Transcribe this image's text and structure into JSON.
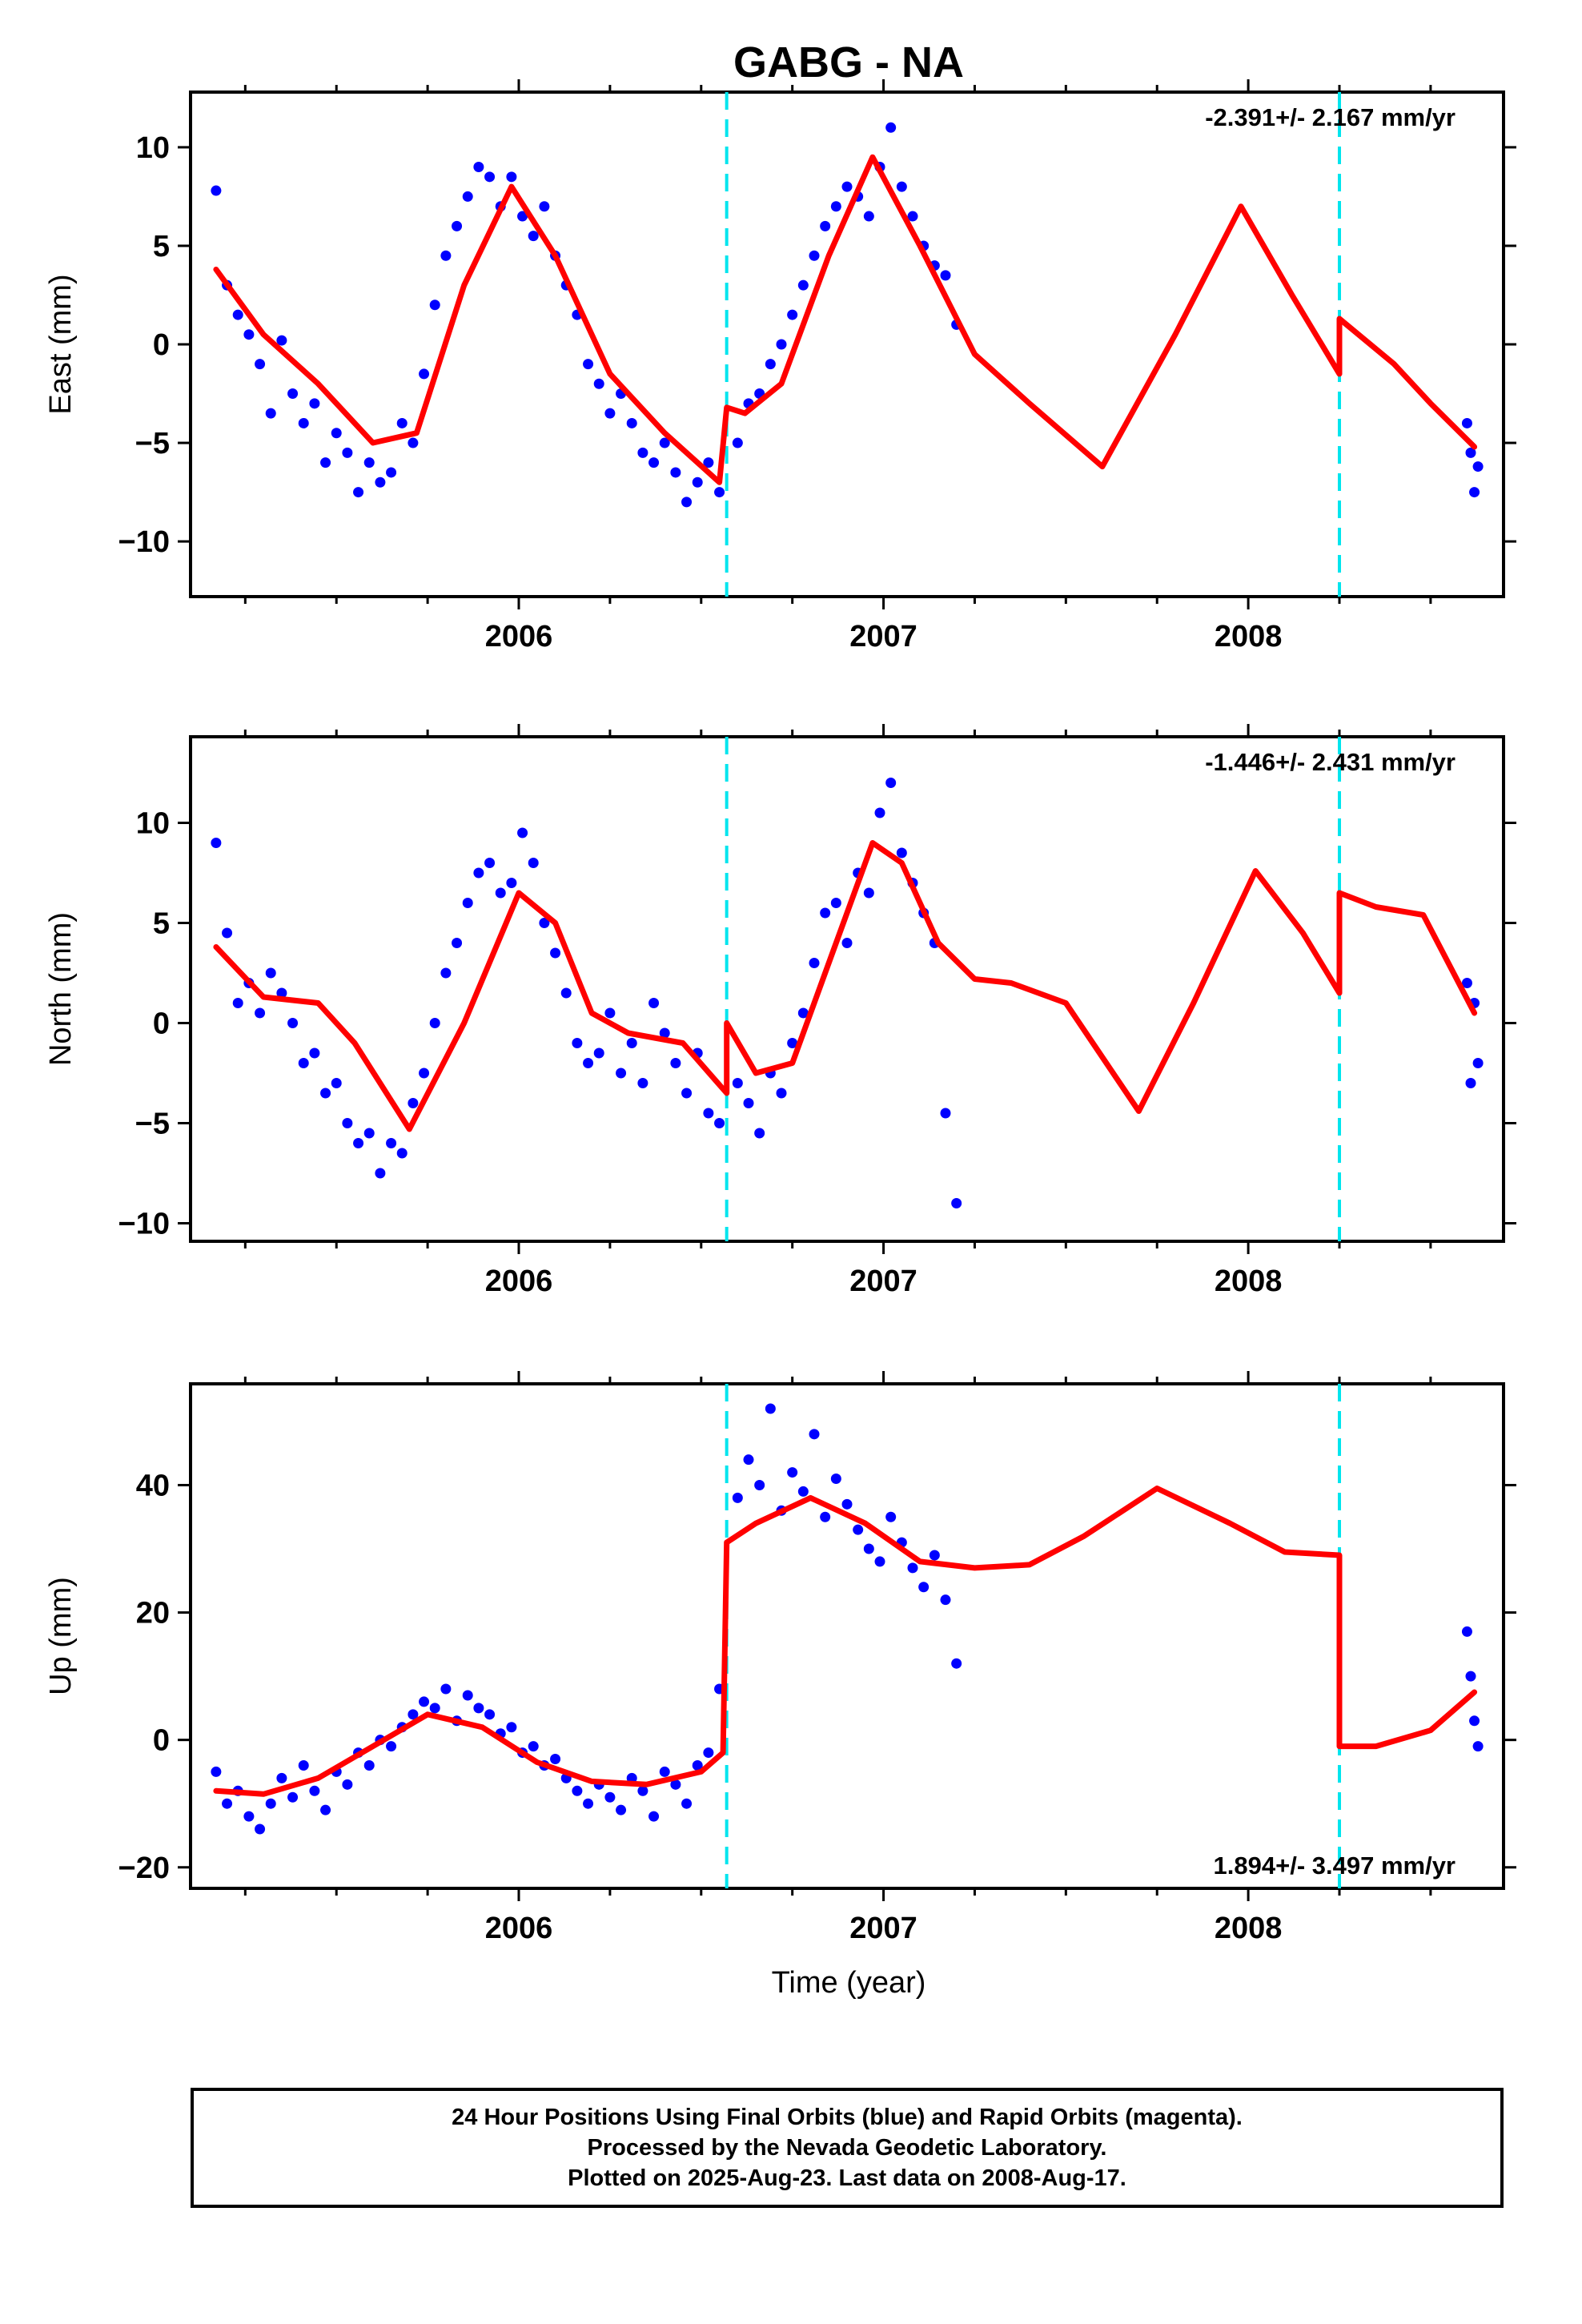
{
  "title": "GABG - NA",
  "colors": {
    "data_points": "#0000ff",
    "model_line": "#ff0000",
    "offset_lines": "#00e5ee",
    "frame": "#000000"
  },
  "xlabel": "Time (year)",
  "footer": {
    "line1": "24 Hour Positions Using Final Orbits (blue) and Rapid Orbits (magenta).",
    "line2": "Processed by the Nevada Geodetic Laboratory.",
    "line3": "Plotted on 2025-Aug-23. Last data on 2008-Aug-17."
  },
  "chart_data": [
    {
      "type": "scatter",
      "name_panel": "east",
      "ylabel": "East (mm)",
      "rate_text": "-2.391+/- 2.167 mm/yr",
      "rate_position": "top-right",
      "xlim": [
        2005.1,
        2008.7
      ],
      "ylim": [
        -12.8,
        12.8
      ],
      "x_ticks": [
        2006,
        2007,
        2008
      ],
      "y_ticks": [
        -10,
        -5,
        0,
        5,
        10
      ],
      "y_tick_labels": [
        "−10",
        "−5",
        "0",
        "5",
        "10"
      ],
      "offset_epochs": [
        2006.57,
        2008.25
      ],
      "model_line": {
        "x": [
          2005.17,
          2005.3,
          2005.45,
          2005.6,
          2005.72,
          2005.85,
          2005.98,
          2006.1,
          2006.25,
          2006.4,
          2006.55,
          2006.57,
          2006.62,
          2006.72,
          2006.85,
          2006.97,
          2007.1,
          2007.25,
          2007.4,
          2007.6,
          2007.8,
          2007.98,
          2008.12,
          2008.25,
          2008.25,
          2008.4,
          2008.5,
          2008.62
        ],
        "y": [
          3.8,
          0.5,
          -2.0,
          -5.0,
          -4.5,
          3.0,
          8.0,
          4.5,
          -1.5,
          -4.5,
          -7.0,
          -3.2,
          -3.5,
          -2.0,
          4.5,
          9.5,
          5.0,
          -0.5,
          -3.0,
          -6.2,
          0.5,
          7.0,
          2.5,
          -1.5,
          1.3,
          -1.0,
          -3.0,
          -5.2
        ]
      },
      "points": {
        "x": [
          2005.17,
          2005.2,
          2005.23,
          2005.26,
          2005.29,
          2005.32,
          2005.35,
          2005.38,
          2005.41,
          2005.44,
          2005.47,
          2005.5,
          2005.53,
          2005.56,
          2005.59,
          2005.62,
          2005.65,
          2005.68,
          2005.71,
          2005.74,
          2005.77,
          2005.8,
          2005.83,
          2005.86,
          2005.89,
          2005.92,
          2005.95,
          2005.98,
          2006.01,
          2006.04,
          2006.07,
          2006.1,
          2006.13,
          2006.16,
          2006.19,
          2006.22,
          2006.25,
          2006.28,
          2006.31,
          2006.34,
          2006.37,
          2006.4,
          2006.43,
          2006.46,
          2006.49,
          2006.52,
          2006.55,
          2006.6,
          2006.63,
          2006.66,
          2006.69,
          2006.72,
          2006.75,
          2006.78,
          2006.81,
          2006.84,
          2006.87,
          2006.9,
          2006.93,
          2006.96,
          2006.99,
          2007.02,
          2007.05,
          2007.08,
          2007.11,
          2007.14,
          2007.17,
          2007.2,
          2008.6,
          2008.61,
          2008.62,
          2008.63
        ],
        "y": [
          7.8,
          3.0,
          1.5,
          0.5,
          -1.0,
          -3.5,
          0.2,
          -2.5,
          -4.0,
          -3.0,
          -6.0,
          -4.5,
          -5.5,
          -7.5,
          -6.0,
          -7.0,
          -6.5,
          -4.0,
          -5.0,
          -1.5,
          2.0,
          4.5,
          6.0,
          7.5,
          9.0,
          8.5,
          7.0,
          8.5,
          6.5,
          5.5,
          7.0,
          4.5,
          3.0,
          1.5,
          -1.0,
          -2.0,
          -3.5,
          -2.5,
          -4.0,
          -5.5,
          -6.0,
          -5.0,
          -6.5,
          -8.0,
          -7.0,
          -6.0,
          -7.5,
          -5.0,
          -3.0,
          -2.5,
          -1.0,
          0.0,
          1.5,
          3.0,
          4.5,
          6.0,
          7.0,
          8.0,
          7.5,
          6.5,
          9.0,
          11.0,
          8.0,
          6.5,
          5.0,
          4.0,
          3.5,
          1.0,
          -4.0,
          -5.5,
          -7.5,
          -6.2
        ]
      }
    },
    {
      "type": "scatter",
      "name_panel": "north",
      "ylabel": "North (mm)",
      "rate_text": "-1.446+/- 2.431 mm/yr",
      "rate_position": "top-right",
      "xlim": [
        2005.1,
        2008.7
      ],
      "ylim": [
        -10.9,
        14.3
      ],
      "x_ticks": [
        2006,
        2007,
        2008
      ],
      "y_ticks": [
        -10,
        -5,
        0,
        5,
        10
      ],
      "y_tick_labels": [
        "−10",
        "−5",
        "0",
        "5",
        "10"
      ],
      "offset_epochs": [
        2006.57,
        2008.25
      ],
      "model_line": {
        "x": [
          2005.17,
          2005.3,
          2005.45,
          2005.55,
          2005.7,
          2005.85,
          2006.0,
          2006.1,
          2006.2,
          2006.3,
          2006.45,
          2006.57,
          2006.57,
          2006.65,
          2006.75,
          2006.87,
          2006.97,
          2007.05,
          2007.15,
          2007.25,
          2007.35,
          2007.5,
          2007.7,
          2007.85,
          2008.02,
          2008.15,
          2008.25,
          2008.25,
          2008.35,
          2008.48,
          2008.62
        ],
        "y": [
          3.8,
          1.3,
          1.0,
          -1.0,
          -5.3,
          0.0,
          6.5,
          5.0,
          0.5,
          -0.5,
          -1.0,
          -3.5,
          0.0,
          -2.5,
          -2.0,
          4.0,
          9.0,
          8.0,
          4.0,
          2.2,
          2.0,
          1.0,
          -4.4,
          1.0,
          7.6,
          4.5,
          1.5,
          6.5,
          5.8,
          5.4,
          0.5
        ]
      },
      "points": {
        "x": [
          2005.17,
          2005.2,
          2005.23,
          2005.26,
          2005.29,
          2005.32,
          2005.35,
          2005.38,
          2005.41,
          2005.44,
          2005.47,
          2005.5,
          2005.53,
          2005.56,
          2005.59,
          2005.62,
          2005.65,
          2005.68,
          2005.71,
          2005.74,
          2005.77,
          2005.8,
          2005.83,
          2005.86,
          2005.89,
          2005.92,
          2005.95,
          2005.98,
          2006.01,
          2006.04,
          2006.07,
          2006.1,
          2006.13,
          2006.16,
          2006.19,
          2006.22,
          2006.25,
          2006.28,
          2006.31,
          2006.34,
          2006.37,
          2006.4,
          2006.43,
          2006.46,
          2006.49,
          2006.52,
          2006.55,
          2006.6,
          2006.63,
          2006.66,
          2006.69,
          2006.72,
          2006.75,
          2006.78,
          2006.81,
          2006.84,
          2006.87,
          2006.9,
          2006.93,
          2006.96,
          2006.99,
          2007.02,
          2007.05,
          2007.08,
          2007.11,
          2007.14,
          2007.17,
          2007.2,
          2008.6,
          2008.61,
          2008.62,
          2008.63
        ],
        "y": [
          9.0,
          4.5,
          1.0,
          2.0,
          0.5,
          2.5,
          1.5,
          0.0,
          -2.0,
          -1.5,
          -3.5,
          -3.0,
          -5.0,
          -6.0,
          -5.5,
          -7.5,
          -6.0,
          -6.5,
          -4.0,
          -2.5,
          0.0,
          2.5,
          4.0,
          6.0,
          7.5,
          8.0,
          6.5,
          7.0,
          9.5,
          8.0,
          5.0,
          3.5,
          1.5,
          -1.0,
          -2.0,
          -1.5,
          0.5,
          -2.5,
          -1.0,
          -3.0,
          1.0,
          -0.5,
          -2.0,
          -3.5,
          -1.5,
          -4.5,
          -5.0,
          -3.0,
          -4.0,
          -5.5,
          -2.5,
          -3.5,
          -1.0,
          0.5,
          3.0,
          5.5,
          6.0,
          4.0,
          7.5,
          6.5,
          10.5,
          12.0,
          8.5,
          7.0,
          5.5,
          4.0,
          -4.5,
          -9.0,
          2.0,
          -3.0,
          1.0,
          -2.0
        ]
      }
    },
    {
      "type": "scatter",
      "name_panel": "up",
      "ylabel": "Up (mm)",
      "rate_text": "1.894+/- 3.497 mm/yr",
      "rate_position": "bottom-right",
      "xlim": [
        2005.1,
        2008.7
      ],
      "ylim": [
        -23.3,
        55.9
      ],
      "x_ticks": [
        2006,
        2007,
        2008
      ],
      "y_ticks": [
        -20,
        0,
        20,
        40
      ],
      "y_tick_labels": [
        "−20",
        "0",
        "20",
        "40"
      ],
      "offset_epochs": [
        2006.57,
        2008.25
      ],
      "model_line": {
        "x": [
          2005.17,
          2005.3,
          2005.45,
          2005.6,
          2005.75,
          2005.9,
          2006.05,
          2006.2,
          2006.35,
          2006.5,
          2006.56,
          2006.57,
          2006.65,
          2006.8,
          2006.95,
          2007.1,
          2007.25,
          2007.4,
          2007.55,
          2007.75,
          2007.95,
          2008.1,
          2008.25,
          2008.25,
          2008.35,
          2008.5,
          2008.62
        ],
        "y": [
          -8.0,
          -8.5,
          -6.0,
          -1.0,
          4.0,
          2.0,
          -3.5,
          -6.5,
          -7.0,
          -5.0,
          -2.0,
          31.0,
          34.0,
          38.0,
          34.0,
          28.0,
          27.0,
          27.5,
          32.0,
          39.5,
          34.0,
          29.5,
          29.0,
          -1.0,
          -1.0,
          1.5,
          7.5
        ]
      },
      "points": {
        "x": [
          2005.17,
          2005.2,
          2005.23,
          2005.26,
          2005.29,
          2005.32,
          2005.35,
          2005.38,
          2005.41,
          2005.44,
          2005.47,
          2005.5,
          2005.53,
          2005.56,
          2005.59,
          2005.62,
          2005.65,
          2005.68,
          2005.71,
          2005.74,
          2005.77,
          2005.8,
          2005.83,
          2005.86,
          2005.89,
          2005.92,
          2005.95,
          2005.98,
          2006.01,
          2006.04,
          2006.07,
          2006.1,
          2006.13,
          2006.16,
          2006.19,
          2006.22,
          2006.25,
          2006.28,
          2006.31,
          2006.34,
          2006.37,
          2006.4,
          2006.43,
          2006.46,
          2006.49,
          2006.52,
          2006.55,
          2006.6,
          2006.63,
          2006.66,
          2006.69,
          2006.72,
          2006.75,
          2006.78,
          2006.81,
          2006.84,
          2006.87,
          2006.9,
          2006.93,
          2006.96,
          2006.99,
          2007.02,
          2007.05,
          2007.08,
          2007.11,
          2007.14,
          2007.17,
          2007.2,
          2008.6,
          2008.61,
          2008.62,
          2008.63
        ],
        "y": [
          -5.0,
          -10.0,
          -8.0,
          -12.0,
          -14.0,
          -10.0,
          -6.0,
          -9.0,
          -4.0,
          -8.0,
          -11.0,
          -5.0,
          -7.0,
          -2.0,
          -4.0,
          0.0,
          -1.0,
          2.0,
          4.0,
          6.0,
          5.0,
          8.0,
          3.0,
          7.0,
          5.0,
          4.0,
          1.0,
          2.0,
          -2.0,
          -1.0,
          -4.0,
          -3.0,
          -6.0,
          -8.0,
          -10.0,
          -7.0,
          -9.0,
          -11.0,
          -6.0,
          -8.0,
          -12.0,
          -5.0,
          -7.0,
          -10.0,
          -4.0,
          -2.0,
          8.0,
          38.0,
          44.0,
          40.0,
          52.0,
          36.0,
          42.0,
          39.0,
          48.0,
          35.0,
          41.0,
          37.0,
          33.0,
          30.0,
          28.0,
          35.0,
          31.0,
          27.0,
          24.0,
          29.0,
          22.0,
          12.0,
          17.0,
          10.0,
          3.0,
          -1.0
        ]
      }
    }
  ]
}
